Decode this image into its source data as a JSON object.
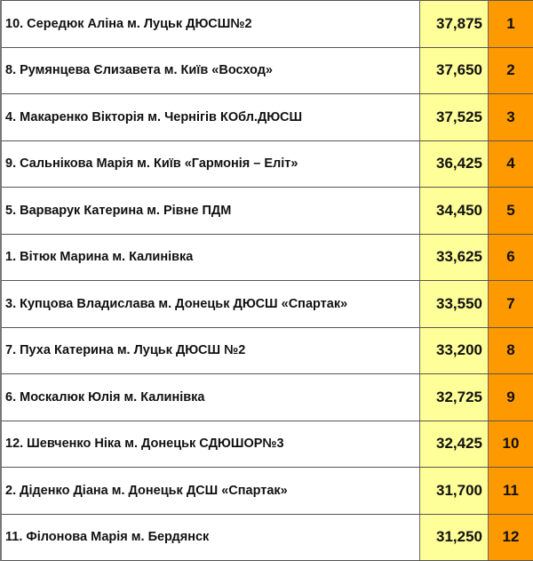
{
  "rows": [
    {
      "name": "10. Середюк Аліна м. Луцьк ДЮСШ№2",
      "score": "37,875",
      "rank": "1"
    },
    {
      "name": "8. Румянцева Єлизавета м. Київ «Восход»",
      "score": "37,650",
      "rank": "2"
    },
    {
      "name": "4. Макаренко Вікторія м. Чернігів КОбл.ДЮСШ",
      "score": "37,525",
      "rank": "3"
    },
    {
      "name": "9. Сальнікова Марія м. Київ «Гармонія – Еліт»",
      "score": "36,425",
      "rank": "4"
    },
    {
      "name": "5. Варварук Катерина м. Рівне ПДМ",
      "score": "34,450",
      "rank": "5"
    },
    {
      "name": "1. Вітюк Марина м. Калинівка",
      "score": "33,625",
      "rank": "6"
    },
    {
      "name": "3. Купцова Владислава м. Донецьк ДЮСШ «Спартак»",
      "score": "33,550",
      "rank": "7"
    },
    {
      "name": "7. Пуха Катерина м. Луцьк ДЮСШ №2",
      "score": "33,200",
      "rank": "8"
    },
    {
      "name": "6. Москалюк Юлія м. Калинівка",
      "score": "32,725",
      "rank": "9"
    },
    {
      "name": "12. Шевченко Ніка м. Донецьк СДЮШОР№3",
      "score": "32,425",
      "rank": "10"
    },
    {
      "name": "2. Діденко Діана м. Донецьк ДСШ «Спартак»",
      "score": "31,700",
      "rank": "11"
    },
    {
      "name": "11. Філонова Марія м. Бердянск",
      "score": "31,250",
      "rank": "12"
    }
  ],
  "colors": {
    "score_bg": "#ffff99",
    "rank_bg": "#ff9900"
  }
}
